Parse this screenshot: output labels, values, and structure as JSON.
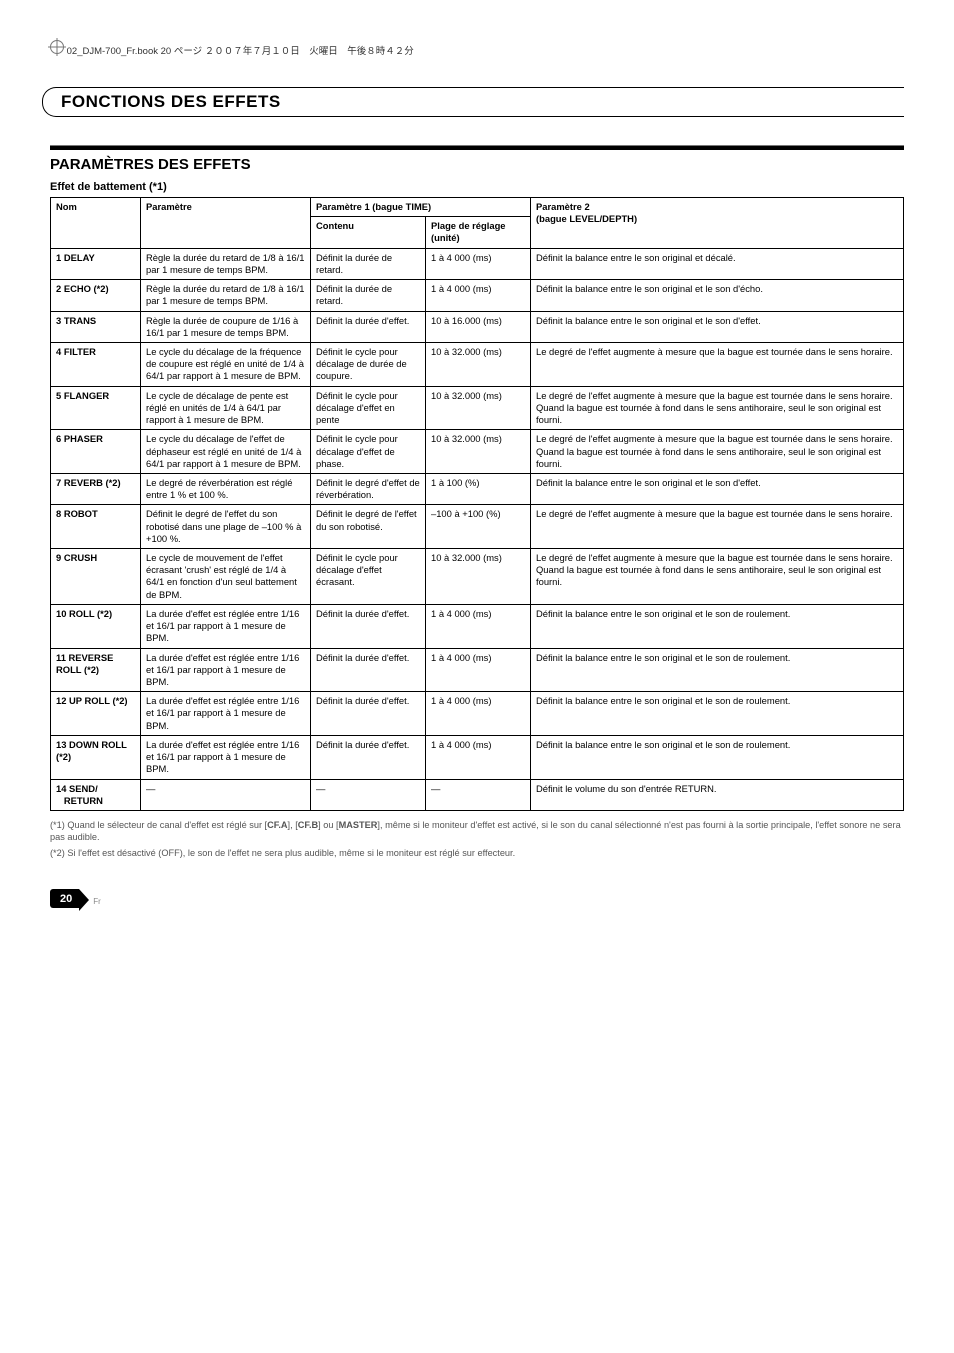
{
  "meta": {
    "header_text": "02_DJM-700_Fr.book  20 ページ  ２００７年７月１０日　火曜日　午後８時４２分"
  },
  "section": {
    "title": "FONCTIONS DES EFFETS",
    "subsection_title": "PARAMÈTRES DES EFFETS",
    "table_title": "Effet de battement (*1)"
  },
  "headers": {
    "nom": "Nom",
    "parametre": "Paramètre",
    "param1": "Paramètre 1 (bague TIME)",
    "param2": "Paramètre 2",
    "param2_sub": "(bague LEVEL/DEPTH)",
    "contenu": "Contenu",
    "plage": "Plage de réglage (unité)"
  },
  "rows": [
    {
      "num": "1",
      "name": "DELAY",
      "param": "Règle la durée du retard de 1/8 à 16/1 par 1 mesure de temps BPM.",
      "contenu": "Définit la durée de retard.",
      "plage": "1 à 4 000 (ms)",
      "p2": "Définit la balance entre le son original et décalé."
    },
    {
      "num": "2",
      "name": "ECHO (*2)",
      "param": "Règle la durée du retard de 1/8 à 16/1 par 1 mesure de temps BPM.",
      "contenu": "Définit la durée de retard.",
      "plage": "1 à 4 000 (ms)",
      "p2": "Définit la balance entre le son original et le son d'écho."
    },
    {
      "num": "3",
      "name": "TRANS",
      "param": "Règle la durée de coupure de 1/16 à 16/1 par 1 mesure de temps BPM.",
      "contenu": "Définit la durée d'effet.",
      "plage": "10 à 16.000 (ms)",
      "p2": "Définit la balance entre le son original et le son d'effet."
    },
    {
      "num": "4",
      "name": "FILTER",
      "param": "Le cycle du décalage de la fréquence de coupure est réglé en unité de 1/4 à 64/1 par rapport à 1 mesure de BPM.",
      "contenu": "Définit le cycle pour décalage de durée de coupure.",
      "plage": "10 à 32.000 (ms)",
      "p2": "Le degré de l'effet augmente à mesure que la bague est tournée dans le sens horaire."
    },
    {
      "num": "5",
      "name": "FLANGER",
      "param": "Le cycle de décalage de pente est réglé en unités de 1/4 à 64/1 par rapport à 1 mesure de BPM.",
      "contenu": "Définit le cycle pour décalage d'effet en pente",
      "plage": "10 à 32.000 (ms)",
      "p2": "Le degré de l'effet augmente à mesure que la bague est tournée dans le sens horaire. Quand la bague est tournée à fond dans le sens antihoraire, seul le son original est fourni."
    },
    {
      "num": "6",
      "name": "PHASER",
      "param": "Le cycle du décalage de l'effet de déphaseur est réglé en unité de 1/4 à 64/1 par rapport à 1 mesure de BPM.",
      "contenu": "Définit le cycle pour décalage d'effet de phase.",
      "plage": "10 à 32.000 (ms)",
      "p2": "Le degré de l'effet augmente à mesure que la bague est tournée dans le sens horaire. Quand la bague est tournée à fond dans le sens antihoraire, seul le son original est fourni."
    },
    {
      "num": "7",
      "name": "REVERB (*2)",
      "param": "Le degré de réverbération est réglé entre 1 % et 100 %.",
      "contenu": "Définit le degré d'effet de réverbération.",
      "plage": "1 à 100 (%)",
      "p2": "Définit la balance entre le son original et le son d'effet."
    },
    {
      "num": "8",
      "name": "ROBOT",
      "param": "Définit le degré de l'effet du son robotisé dans une plage de –100 % à +100 %.",
      "contenu": "Définit le degré de l'effet du son robotisé.",
      "plage": "–100 à +100 (%)",
      "p2": "Le degré de l'effet augmente à mesure que la bague est tournée dans le sens horaire."
    },
    {
      "num": "9",
      "name": "CRUSH",
      "param": "Le cycle de mouvement de l'effet écrasant 'crush' est réglé de 1/4 à 64/1 en fonction d'un seul battement de BPM.",
      "contenu": "Définit le cycle pour décalage d'effet écrasant.",
      "plage": "10 à 32.000 (ms)",
      "p2": "Le degré de l'effet augmente à mesure que la bague est tournée dans le sens horaire. Quand la bague est tournée à fond dans le sens antihoraire, seul le son original est fourni."
    },
    {
      "num": "10",
      "name": "ROLL (*2)",
      "param": "La durée d'effet est réglée entre 1/16 et 16/1 par rapport à 1 mesure de BPM.",
      "contenu": "Définit la durée d'effet.",
      "plage": "1 à 4 000 (ms)",
      "p2": "Définit la balance entre le son original et le son de roulement."
    },
    {
      "num": "11",
      "name": "REVERSE ROLL (*2)",
      "param": "La durée d'effet est réglée entre 1/16 et 16/1 par rapport à 1 mesure de BPM.",
      "contenu": "Définit la durée d'effet.",
      "plage": "1 à 4 000 (ms)",
      "p2": "Définit la balance entre le son original et le son de roulement."
    },
    {
      "num": "12",
      "name": "UP ROLL (*2)",
      "param": "La durée d'effet est réglée entre 1/16 et 16/1 par rapport à 1 mesure de BPM.",
      "contenu": "Définit la durée d'effet.",
      "plage": "1 à 4 000 (ms)",
      "p2": "Définit la balance entre le son original et le son de roulement."
    },
    {
      "num": "13",
      "name": "DOWN ROLL (*2)",
      "param": "La durée d'effet est réglée entre 1/16 et 16/1 par rapport à 1 mesure de BPM.",
      "contenu": "Définit la durée d'effet.",
      "plage": "1 à 4 000 (ms)",
      "p2": "Définit la balance entre le son original et le son de roulement."
    },
    {
      "num": "14",
      "name": "SEND/\nRETURN",
      "param": "—",
      "contenu": "—",
      "plage": "—",
      "p2": "Définit le volume du son d'entrée RETURN."
    }
  ],
  "footnotes": {
    "n1": "(*1) Quand le sélecteur de canal d'effet est réglé sur [CF.A], [CF.B] ou [MASTER], même si le moniteur d'effet est activé, si le son du canal sélectionné n'est pas fourni à la sortie principale, l'effet sonore ne sera pas audible.",
    "n2": "(*2) Si l'effet est désactivé (OFF), le son de l'effet ne sera plus audible, même si le moniteur est réglé sur effecteur."
  },
  "page": {
    "number": "20",
    "lang": "Fr"
  }
}
